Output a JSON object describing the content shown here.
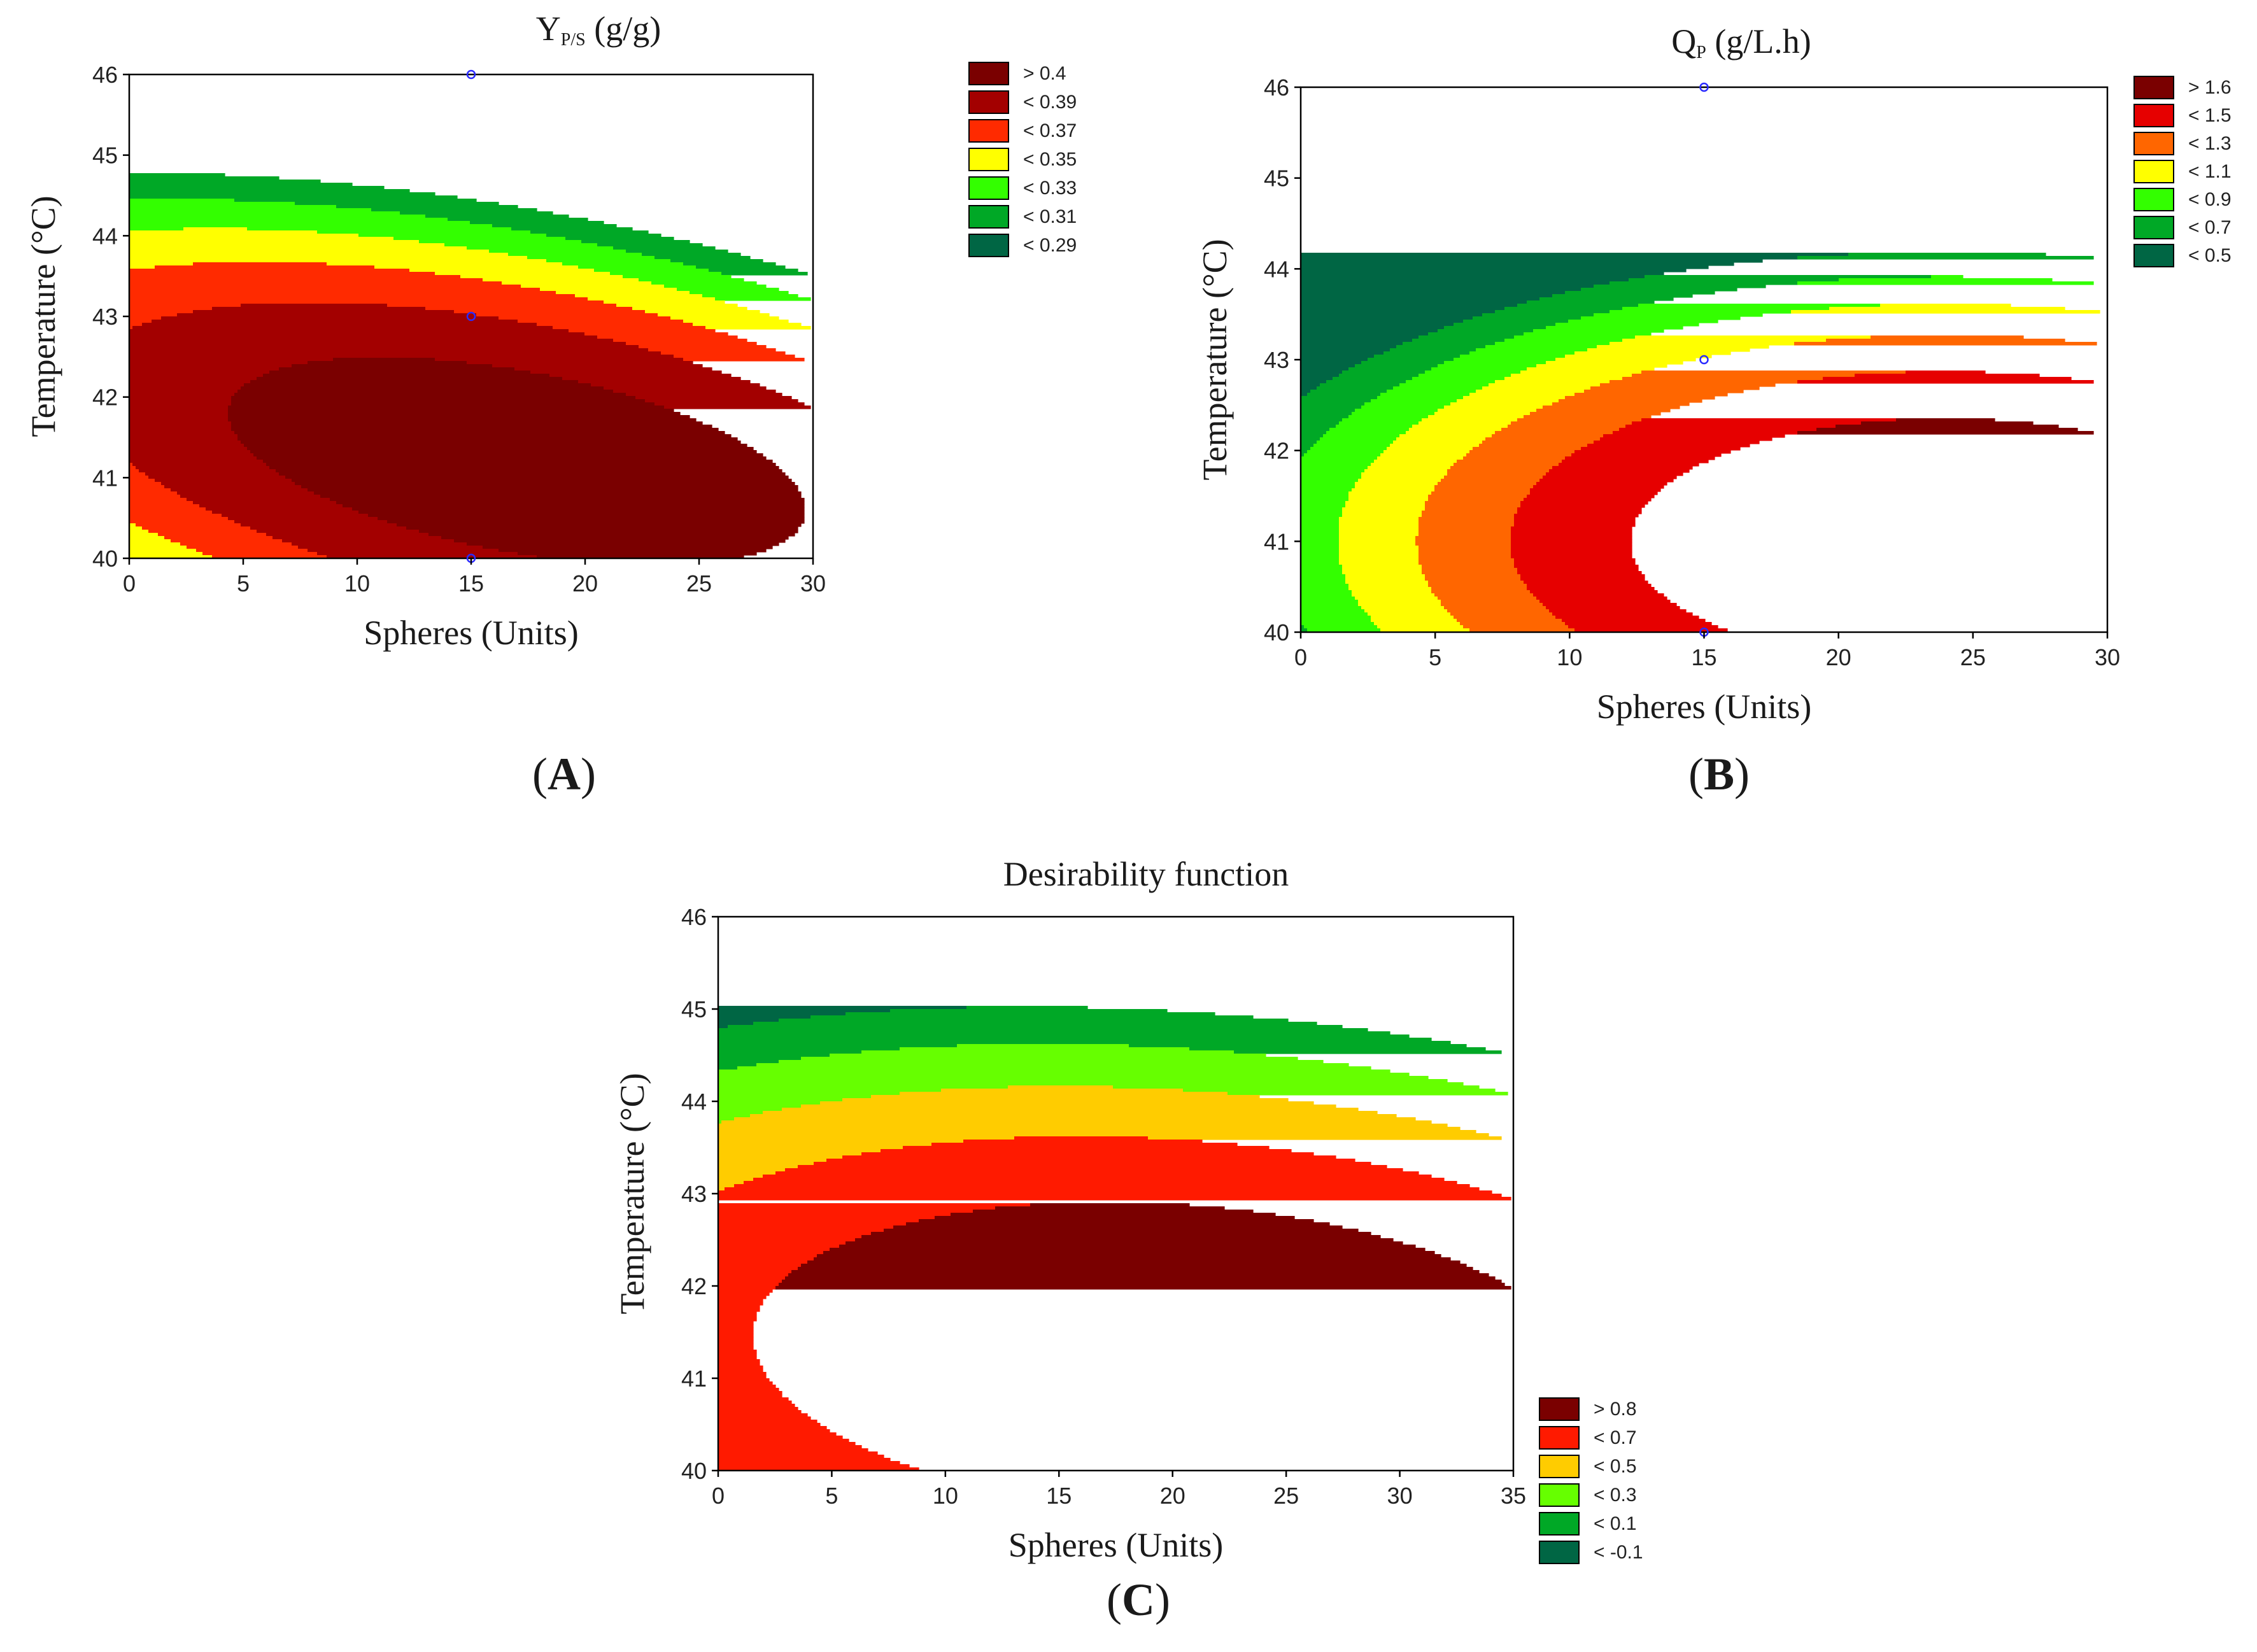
{
  "figure": {
    "panel_labels": [
      "A",
      "B",
      "C"
    ]
  },
  "chart_data": [
    {
      "id": "A",
      "type": "contour",
      "title_main": "Y",
      "title_sub": "P/S",
      "title_rest": " (g/g)",
      "xlabel": "Spheres (Units)",
      "ylabel": "Temperature (°C)",
      "xlim": [
        0,
        30
      ],
      "ylim": [
        40,
        46
      ],
      "xticks": [
        0,
        5,
        10,
        15,
        20,
        25,
        30
      ],
      "yticks": [
        40,
        41,
        42,
        43,
        44,
        45,
        46
      ],
      "design_points": [
        [
          15,
          40
        ],
        [
          15,
          43
        ],
        [
          15,
          46
        ]
      ],
      "surface": {
        "center": [
          17,
          41.2
        ],
        "peak": 0.405,
        "a": 0.00012,
        "b": 0.0115,
        "c": 0.0011
      },
      "levels": [
        0.29,
        0.31,
        0.33,
        0.35,
        0.37,
        0.39,
        0.4
      ],
      "legend": [
        {
          "label": "> 0.4",
          "color": "#7a0000"
        },
        {
          "label": "< 0.39",
          "color": "#a30000"
        },
        {
          "label": "< 0.37",
          "color": "#ff2a00"
        },
        {
          "label": "< 0.35",
          "color": "#ffff00"
        },
        {
          "label": "< 0.33",
          "color": "#33ff00"
        },
        {
          "label": "< 0.31",
          "color": "#00a826"
        },
        {
          "label": "< 0.29",
          "color": "#006644"
        }
      ],
      "legend_position": "right-top"
    },
    {
      "id": "B",
      "type": "contour",
      "title_main": "Q",
      "title_sub": "P",
      "title_rest": " (g/L.h)",
      "xlabel": "Spheres (Units)",
      "ylabel": "Temperature (°C)",
      "xlim": [
        0,
        30
      ],
      "ylim": [
        40,
        46
      ],
      "xticks": [
        0,
        5,
        10,
        15,
        20,
        25,
        30
      ],
      "yticks": [
        40,
        41,
        42,
        43,
        44,
        45,
        46
      ],
      "design_points": [
        [
          15,
          40
        ],
        [
          15,
          43
        ],
        [
          15,
          46
        ]
      ],
      "surface": {
        "center": [
          24,
          41.0
        ],
        "peak": 1.72,
        "a": 0.0016,
        "b": 0.12,
        "c": 0.0
      },
      "levels": [
        0.5,
        0.7,
        0.9,
        1.1,
        1.3,
        1.5,
        1.6
      ],
      "legend": [
        {
          "label": "> 1.6",
          "color": "#7a0000"
        },
        {
          "label": "< 1.5",
          "color": "#e60000"
        },
        {
          "label": "< 1.3",
          "color": "#ff6600"
        },
        {
          "label": "< 1.1",
          "color": "#ffff00"
        },
        {
          "label": "< 0.9",
          "color": "#33ff00"
        },
        {
          "label": "< 0.7",
          "color": "#00a826"
        },
        {
          "label": "< 0.5",
          "color": "#006644"
        }
      ],
      "legend_position": "right-top"
    },
    {
      "id": "C",
      "type": "contour",
      "title_main": "Desirability function",
      "title_sub": "",
      "title_rest": "",
      "xlabel": "Spheres (Units)",
      "ylabel": "Temperature (°C)",
      "xlim": [
        0,
        35
      ],
      "ylim": [
        40,
        46
      ],
      "xticks": [
        0,
        5,
        10,
        15,
        20,
        25,
        30,
        35
      ],
      "yticks": [
        40,
        41,
        42,
        43,
        44,
        45,
        46
      ],
      "design_points": [],
      "surface": {
        "center": [
          20,
          41.2
        ],
        "peak": 0.9,
        "a": 0.0006,
        "b": 0.07,
        "c": 0.002
      },
      "levels": [
        -0.1,
        0.1,
        0.3,
        0.5,
        0.7,
        0.8
      ],
      "legend": [
        {
          "label": "> 0.8",
          "color": "#7a0000"
        },
        {
          "label": "< 0.7",
          "color": "#ff1a00"
        },
        {
          "label": "< 0.5",
          "color": "#ffcc00"
        },
        {
          "label": "< 0.3",
          "color": "#66ff00"
        },
        {
          "label": "< 0.1",
          "color": "#00a826"
        },
        {
          "label": "< -0.1",
          "color": "#006644"
        }
      ],
      "legend_position": "right-bottom"
    }
  ]
}
